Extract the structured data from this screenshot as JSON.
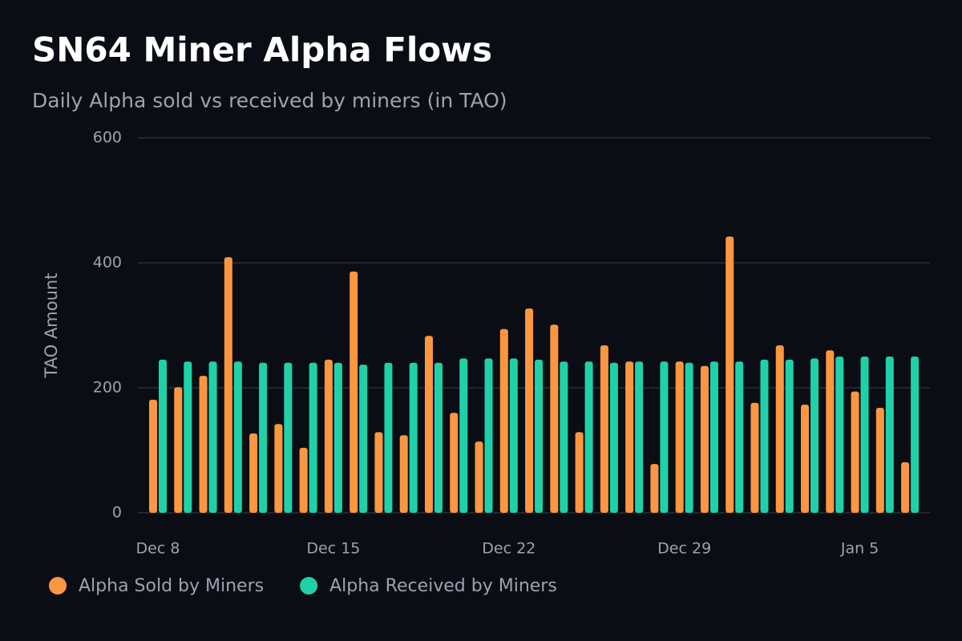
{
  "chart_data": {
    "type": "bar",
    "title": "SN64 Miner Alpha Flows",
    "subtitle": "Daily Alpha sold vs received by miners (in TAO)",
    "y_label": "TAO Amount",
    "categories": [
      "Dec 8",
      null,
      null,
      null,
      null,
      null,
      null,
      "Dec 15",
      null,
      null,
      null,
      null,
      null,
      null,
      "Dec 22",
      null,
      null,
      null,
      null,
      null,
      null,
      "Dec 29",
      null,
      null,
      null,
      null,
      null,
      null,
      "Jan 5",
      null,
      null
    ],
    "series": [
      {
        "name": "Alpha Sold by Miners",
        "color": "#fd9640",
        "values": [
          181,
          201,
          219,
          409,
          127,
          142,
          104,
          245,
          386,
          129,
          124,
          283,
          160,
          114,
          294,
          327,
          301,
          129,
          268,
          242,
          78,
          242,
          235,
          442,
          176,
          268,
          173,
          260,
          194,
          168,
          81
        ]
      },
      {
        "name": "Alpha Received by Miners",
        "color": "#1fd1a8",
        "values": [
          245,
          242,
          242,
          242,
          240,
          240,
          240,
          240,
          237,
          240,
          240,
          240,
          247,
          247,
          247,
          245,
          242,
          242,
          240,
          242,
          242,
          240,
          242,
          242,
          245,
          245,
          247,
          250,
          250,
          250,
          250
        ]
      }
    ],
    "ylim": [
      0,
      600
    ],
    "yticks": [
      0,
      200,
      400,
      600
    ],
    "grid": true,
    "legend": "bottom-left"
  }
}
